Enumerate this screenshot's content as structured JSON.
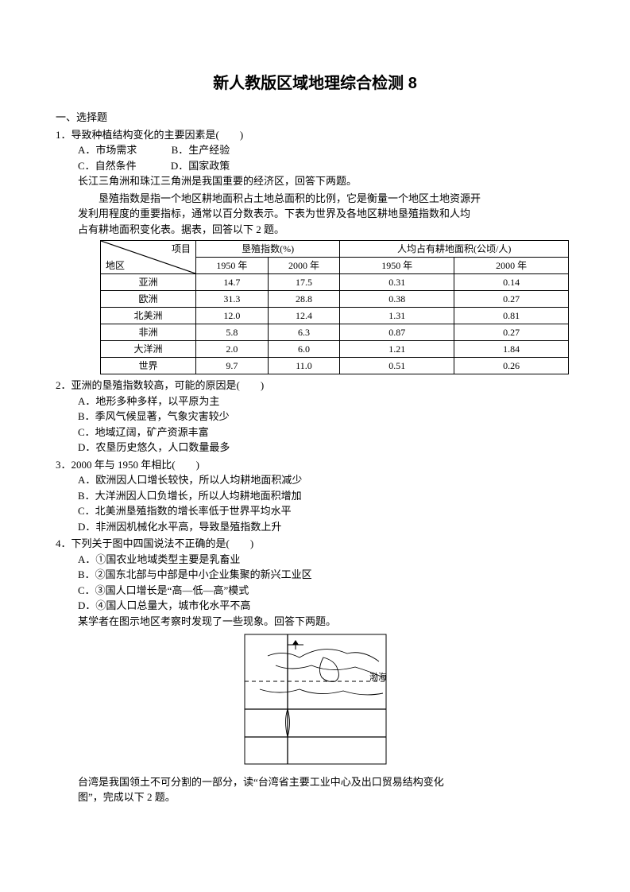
{
  "title": "新人教版区域地理综合检测 8",
  "section1": "一、选择题",
  "q1": {
    "stem": "1．导致种植结构变化的主要因素是(　　)",
    "A": "A．市场需求",
    "B": "B．生产经验",
    "C": "C．自然条件",
    "D": "D．国家政策",
    "note": "长江三角洲和珠江三角洲是我国重要的经济区，回答下两题。"
  },
  "tableIntro1": "　　垦殖指数是指一个地区耕地面积占土地总面积的比例，它是衡量一个地区土地资源开",
  "tableIntro2": "发利用程度的重要指标，通常以百分数表示。下表为世界及各地区耕地垦殖指数和人均",
  "tableIntro3": "占有耕地面积变化表。据表，回答以下 2 题。",
  "table": {
    "diagTop": "项目",
    "diagBot": "地区",
    "h1": "垦殖指数(%)",
    "h2": "人均占有耕地面积(公顷/人)",
    "y1": "1950 年",
    "y2": "2000 年",
    "rows": [
      {
        "region": "亚洲",
        "a": "14.7",
        "b": "17.5",
        "c": "0.31",
        "d": "0.14"
      },
      {
        "region": "欧洲",
        "a": "31.3",
        "b": "28.8",
        "c": "0.38",
        "d": "0.27"
      },
      {
        "region": "北美洲",
        "a": "12.0",
        "b": "12.4",
        "c": "1.31",
        "d": "0.81"
      },
      {
        "region": "非洲",
        "a": "5.8",
        "b": "6.3",
        "c": "0.87",
        "d": "0.27"
      },
      {
        "region": "大洋洲",
        "a": "2.0",
        "b": "6.0",
        "c": "1.21",
        "d": "1.84"
      },
      {
        "region": "世界",
        "a": "9.7",
        "b": "11.0",
        "c": "0.51",
        "d": "0.26"
      }
    ]
  },
  "q2": {
    "stem": "2．亚洲的垦殖指数较高，可能的原因是(　　)",
    "A": "A．地形多种多样，以平原为主",
    "B": "B．季风气候显著，气象灾害较少",
    "C": "C．地域辽阔，矿产资源丰富",
    "D": "D．农垦历史悠久，人口数量最多"
  },
  "q3": {
    "stem": "3．2000 年与 1950 年相比(　　)",
    "A": "A．欧洲因人口增长较快，所以人均耕地面积减少",
    "B": "B．大洋洲因人口负增长，所以人均耕地面积增加",
    "C": "C．北美洲垦殖指数的增长率低于世界平均水平",
    "D": "D．非洲因机械化水平高，导致垦殖指数上升"
  },
  "q4": {
    "stem": "4．下列关于图中四国说法不正确的是(　　)",
    "A": "A．①国农业地域类型主要是乳畜业",
    "B": "B．②国东北部与中部是中小企业集聚的新兴工业区",
    "C": "C．③国人口增长是“高—低—高”模式",
    "D": "D．④国人口总量大，城市化水平不高",
    "note": "某学者在图示地区考察时发现了一些现象。回答下两题。"
  },
  "mapLabel": "渤海",
  "taiwan1": "台湾是我国领土不可分割的一部分，读“台湾省主要工业中心及出口贸易结构变化",
  "taiwan2": "图”，完成以下 2 题。"
}
